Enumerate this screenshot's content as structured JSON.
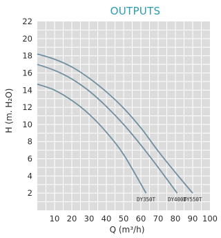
{
  "chart_data": {
    "type": "line",
    "title": "OUTPUTS",
    "xlabel": "Q (m³/h)",
    "ylabel": "H (m. H₂O)",
    "xlim": [
      0,
      100
    ],
    "ylim": [
      0,
      22
    ],
    "x_ticks": [
      10,
      20,
      30,
      40,
      50,
      60,
      70,
      80,
      90,
      100
    ],
    "y_ticks": [
      2,
      4,
      6,
      8,
      10,
      12,
      14,
      16,
      18,
      20,
      22
    ],
    "grid": true,
    "series": [
      {
        "name": "DY550T",
        "x": [
          0,
          10,
          20,
          30,
          40,
          50,
          60,
          70,
          80,
          90
        ],
        "y": [
          18.2,
          17.6,
          16.7,
          15.4,
          13.8,
          11.9,
          9.6,
          6.9,
          4.4,
          2.0
        ]
      },
      {
        "name": "DY400T",
        "x": [
          0,
          10,
          20,
          30,
          40,
          50,
          60,
          70,
          81
        ],
        "y": [
          17.0,
          16.3,
          15.3,
          13.9,
          12.1,
          10.0,
          7.6,
          5.0,
          2.0
        ]
      },
      {
        "name": "DY350T",
        "x": [
          0,
          10,
          20,
          30,
          40,
          50,
          63
        ],
        "y": [
          14.7,
          14.0,
          12.8,
          11.2,
          9.1,
          6.5,
          2.0
        ]
      }
    ],
    "colors": {
      "curve": "#6f8ea0",
      "plot_bg": "#dcdcdc",
      "grid": "#ffffff",
      "title": "#2a9bb0"
    }
  }
}
